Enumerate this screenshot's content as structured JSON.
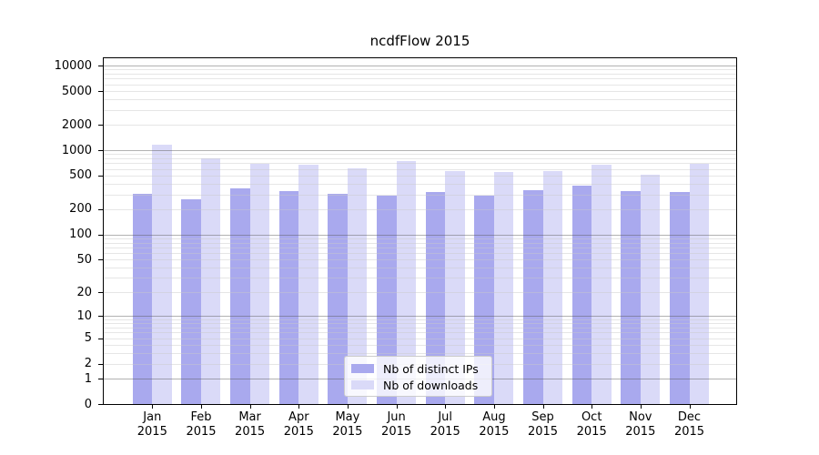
{
  "chart_data": {
    "type": "bar",
    "title": "ncdfFlow 2015",
    "categories": [
      "Jan 2015",
      "Feb 2015",
      "Mar 2015",
      "Apr 2015",
      "May 2015",
      "Jun 2015",
      "Jul 2015",
      "Aug 2015",
      "Sep 2015",
      "Oct 2015",
      "Nov 2015",
      "Dec 2015"
    ],
    "series": [
      {
        "name": "Nb of distinct IPs",
        "color": "#a9a9ee",
        "values": [
          302,
          260,
          353,
          330,
          302,
          287,
          317,
          290,
          339,
          377,
          330,
          320
        ]
      },
      {
        "name": "Nb of downloads",
        "color": "#dadaf8",
        "values": [
          1166,
          799,
          694,
          666,
          613,
          735,
          560,
          546,
          566,
          677,
          507,
          682
        ]
      }
    ],
    "yscale": "log10(1+y)",
    "yticks": [
      0,
      1,
      2,
      5,
      10,
      20,
      50,
      100,
      200,
      500,
      1000,
      2000,
      5000,
      10000
    ],
    "ylim": [
      0,
      12000
    ],
    "xlabel": "",
    "ylabel": "",
    "grid": true,
    "legend_position": "lower center",
    "colors": {
      "major_gridline": "#b0b0b0",
      "minor_gridline": "#e6e6e6",
      "spine": "#000000",
      "background": "#ffffff"
    }
  }
}
